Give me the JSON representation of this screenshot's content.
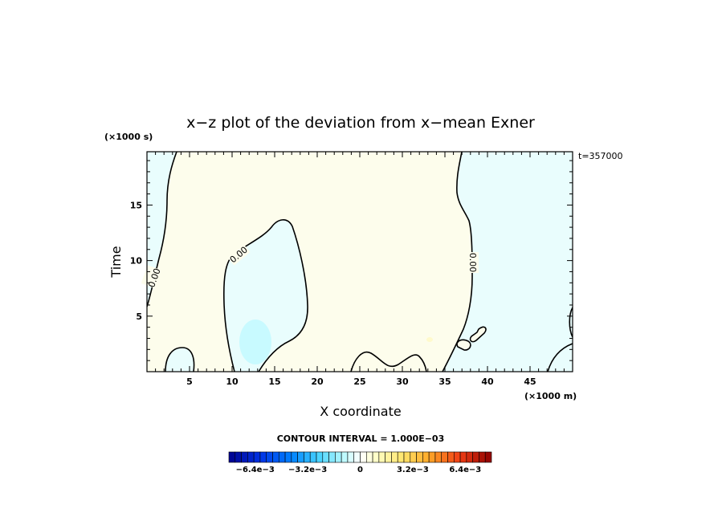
{
  "chart_data": {
    "type": "contour",
    "title": "x−z plot of the deviation from x−mean Exner",
    "xlabel": "X coordinate",
    "ylabel": "Time",
    "x_unit": "(×1000 m)",
    "y_unit": "(×1000 s)",
    "time_label": "t=357000",
    "xlim": [
      0,
      50
    ],
    "ylim": [
      0,
      19.8
    ],
    "x_ticks": [
      5,
      10,
      15,
      20,
      25,
      30,
      35,
      40,
      45
    ],
    "y_ticks": [
      5,
      10,
      15
    ],
    "contour_label": "0.00",
    "contour_interval_text": "CONTOUR INTERVAL = 1.000E−03",
    "colorbar": {
      "tick_labels": [
        "−6.4e−3",
        "−3.2e−3",
        "0",
        "3.2e−3",
        "6.4e−3"
      ],
      "min": -0.008,
      "max": 0.008,
      "colors": {
        "neg_light": "#e9fdfd",
        "neg_mid": "#c8faff",
        "pos_light": "#fdfdec",
        "pos_mid": "#fffacc"
      }
    }
  }
}
